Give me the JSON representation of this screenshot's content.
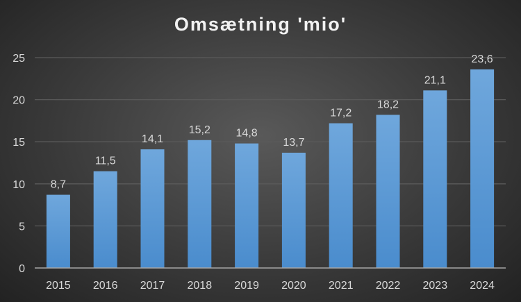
{
  "chart_data": {
    "type": "bar",
    "title": "Omsætning 'mio'",
    "xlabel": "",
    "ylabel": "",
    "categories": [
      "2015",
      "2016",
      "2017",
      "2018",
      "2019",
      "2020",
      "2021",
      "2022",
      "2023",
      "2024"
    ],
    "values": [
      8.7,
      11.5,
      14.1,
      15.2,
      14.8,
      13.7,
      17.2,
      18.2,
      21.1,
      23.6
    ],
    "data_labels": [
      "8,7",
      "11,5",
      "14,1",
      "15,2",
      "14,8",
      "13,7",
      "17,2",
      "18,2",
      "21,1",
      "23,6"
    ],
    "ylim": [
      0,
      25
    ],
    "yticks": [
      0,
      5,
      10,
      15,
      20,
      25
    ],
    "grid": true,
    "legend": "none",
    "bar_color": "#5b9bd5"
  }
}
